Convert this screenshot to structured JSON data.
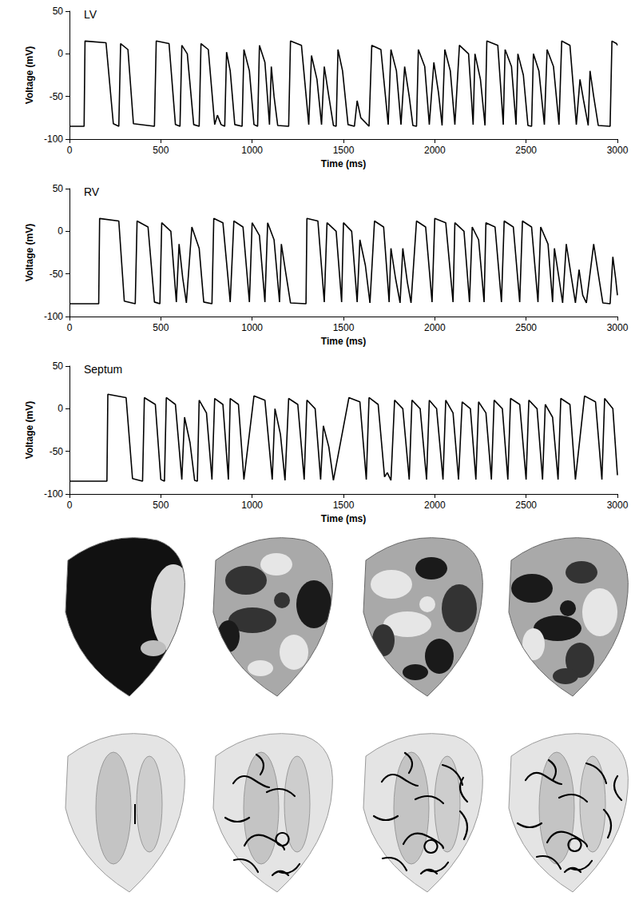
{
  "chart_data": [
    {
      "type": "line",
      "title": "LV",
      "x_label": "Time (ms)",
      "y_label": "Voltage (mV)",
      "xlim": [
        0,
        3000
      ],
      "xticks": [
        0,
        500,
        1000,
        1500,
        2000,
        2500,
        3000
      ],
      "ylim": [
        -100,
        50
      ],
      "yticks": [
        -100,
        -50,
        0,
        50
      ],
      "grid": false,
      "color": "#000000",
      "x": [
        0,
        80,
        85,
        200,
        240,
        270,
        280,
        320,
        350,
        465,
        475,
        545,
        580,
        605,
        615,
        645,
        680,
        710,
        720,
        760,
        795,
        810,
        830,
        850,
        860,
        880,
        905,
        945,
        955,
        985,
        1010,
        1030,
        1040,
        1070,
        1095,
        1105,
        1120,
        1140,
        1200,
        1210,
        1270,
        1310,
        1325,
        1355,
        1380,
        1395,
        1420,
        1445,
        1460,
        1470,
        1495,
        1525,
        1560,
        1575,
        1595,
        1640,
        1655,
        1705,
        1745,
        1760,
        1790,
        1815,
        1835,
        1860,
        1880,
        1900,
        1910,
        1945,
        1970,
        1995,
        2020,
        2040,
        2055,
        2085,
        2110,
        2135,
        2185,
        2210,
        2220,
        2250,
        2275,
        2285,
        2345,
        2375,
        2385,
        2420,
        2445,
        2455,
        2485,
        2510,
        2530,
        2540,
        2570,
        2600,
        2615,
        2650,
        2680,
        2695,
        2740,
        2775,
        2795,
        2815,
        2840,
        2850,
        2870,
        2895,
        2960,
        2970,
        2995,
        3000
      ],
      "values": [
        -85,
        -85,
        15,
        13,
        -82,
        -85,
        12,
        5,
        -82,
        -85,
        15,
        12,
        -83,
        -85,
        10,
        0,
        -83,
        -85,
        12,
        5,
        -83,
        -72,
        -83,
        -85,
        2,
        -20,
        -83,
        -85,
        5,
        -20,
        -83,
        -85,
        10,
        -10,
        -83,
        -15,
        -50,
        -84,
        -85,
        15,
        10,
        -83,
        -2,
        -30,
        -83,
        -15,
        -50,
        -84,
        -85,
        5,
        -20,
        -83,
        -85,
        -55,
        -75,
        -85,
        10,
        5,
        -83,
        5,
        -20,
        -83,
        -15,
        -50,
        -84,
        -85,
        5,
        -15,
        -83,
        -10,
        -45,
        -84,
        5,
        -20,
        -83,
        10,
        0,
        -83,
        0,
        -30,
        -84,
        15,
        10,
        -83,
        5,
        -15,
        -83,
        0,
        -25,
        -84,
        -85,
        0,
        -20,
        -83,
        5,
        -15,
        -83,
        15,
        10,
        -83,
        -30,
        -55,
        -84,
        -20,
        -50,
        -84,
        -85,
        15,
        12,
        10
      ]
    },
    {
      "type": "line",
      "title": "RV",
      "x_label": "Time (ms)",
      "y_label": "Voltage (mV)",
      "xlim": [
        0,
        3000
      ],
      "xticks": [
        0,
        500,
        1000,
        1500,
        2000,
        2500,
        3000
      ],
      "ylim": [
        -100,
        50
      ],
      "yticks": [
        -100,
        -50,
        0,
        50
      ],
      "grid": false,
      "color": "#000000",
      "x": [
        0,
        160,
        165,
        270,
        300,
        360,
        370,
        430,
        465,
        495,
        505,
        555,
        585,
        600,
        620,
        640,
        670,
        710,
        735,
        780,
        790,
        840,
        880,
        900,
        950,
        985,
        1000,
        1040,
        1070,
        1085,
        1120,
        1150,
        1160,
        1185,
        1210,
        1295,
        1300,
        1360,
        1395,
        1410,
        1460,
        1490,
        1500,
        1545,
        1575,
        1590,
        1620,
        1645,
        1670,
        1720,
        1750,
        1760,
        1785,
        1810,
        1825,
        1850,
        1870,
        1900,
        1950,
        1985,
        2000,
        2060,
        2100,
        2110,
        2160,
        2190,
        2205,
        2240,
        2270,
        2280,
        2330,
        2365,
        2380,
        2430,
        2465,
        2480,
        2530,
        2565,
        2580,
        2620,
        2645,
        2655,
        2680,
        2700,
        2720,
        2745,
        2770,
        2790,
        2810,
        2830,
        2870,
        2895,
        2920,
        2960,
        2975,
        2990,
        3000
      ],
      "values": [
        -85,
        -85,
        15,
        12,
        -82,
        -85,
        12,
        5,
        -83,
        -85,
        10,
        0,
        -83,
        -15,
        -55,
        -84,
        5,
        -20,
        -83,
        -85,
        15,
        10,
        -83,
        12,
        5,
        -83,
        10,
        -5,
        -83,
        10,
        -10,
        -83,
        -15,
        -50,
        -84,
        -85,
        15,
        12,
        -83,
        10,
        0,
        -83,
        10,
        0,
        -83,
        -10,
        -40,
        -84,
        12,
        5,
        -83,
        -20,
        -55,
        -84,
        -20,
        -60,
        -84,
        12,
        5,
        -83,
        15,
        10,
        -83,
        10,
        0,
        -83,
        5,
        -10,
        -83,
        10,
        5,
        -83,
        12,
        5,
        -83,
        12,
        5,
        -83,
        5,
        -15,
        -83,
        -20,
        -55,
        -84,
        -15,
        -50,
        -84,
        -45,
        -75,
        -84,
        -15,
        -50,
        -84,
        -85,
        -30,
        -55,
        -75
      ]
    },
    {
      "type": "line",
      "title": "Septum",
      "x_label": "Time (ms)",
      "y_label": "Voltage (mV)",
      "xlim": [
        0,
        3000
      ],
      "xticks": [
        0,
        500,
        1000,
        1500,
        2000,
        2500,
        3000
      ],
      "ylim": [
        -100,
        50
      ],
      "yticks": [
        -100,
        -50,
        0,
        50
      ],
      "grid": false,
      "color": "#000000",
      "x": [
        0,
        205,
        210,
        310,
        345,
        400,
        410,
        470,
        500,
        520,
        530,
        580,
        615,
        630,
        660,
        685,
        700,
        710,
        750,
        780,
        795,
        840,
        870,
        880,
        925,
        955,
        1010,
        1070,
        1110,
        1125,
        1155,
        1180,
        1200,
        1250,
        1285,
        1300,
        1345,
        1375,
        1390,
        1420,
        1445,
        1530,
        1590,
        1625,
        1640,
        1690,
        1725,
        1740,
        1760,
        1780,
        1825,
        1860,
        1875,
        1920,
        1955,
        1970,
        2010,
        2045,
        2060,
        2100,
        2130,
        2150,
        2195,
        2225,
        2240,
        2280,
        2310,
        2325,
        2370,
        2400,
        2415,
        2465,
        2500,
        2515,
        2560,
        2590,
        2605,
        2645,
        2675,
        2690,
        2740,
        2770,
        2820,
        2880,
        2915,
        2930,
        2975,
        3000
      ],
      "values": [
        -85,
        -85,
        17,
        13,
        -82,
        -85,
        13,
        5,
        -83,
        -85,
        13,
        5,
        -83,
        -10,
        -40,
        -84,
        -85,
        10,
        -5,
        -83,
        12,
        5,
        -83,
        12,
        5,
        -83,
        15,
        10,
        -83,
        0,
        -30,
        -84,
        12,
        5,
        -83,
        10,
        0,
        -83,
        -20,
        -45,
        -84,
        13,
        8,
        -83,
        13,
        5,
        -80,
        -75,
        -84,
        10,
        0,
        -83,
        10,
        0,
        -83,
        10,
        0,
        -83,
        10,
        -5,
        -83,
        8,
        0,
        -83,
        8,
        -5,
        -83,
        10,
        0,
        -83,
        12,
        5,
        -83,
        10,
        0,
        -83,
        5,
        -10,
        -83,
        12,
        5,
        -83,
        15,
        8,
        -83,
        12,
        0,
        -78
      ]
    }
  ]
}
